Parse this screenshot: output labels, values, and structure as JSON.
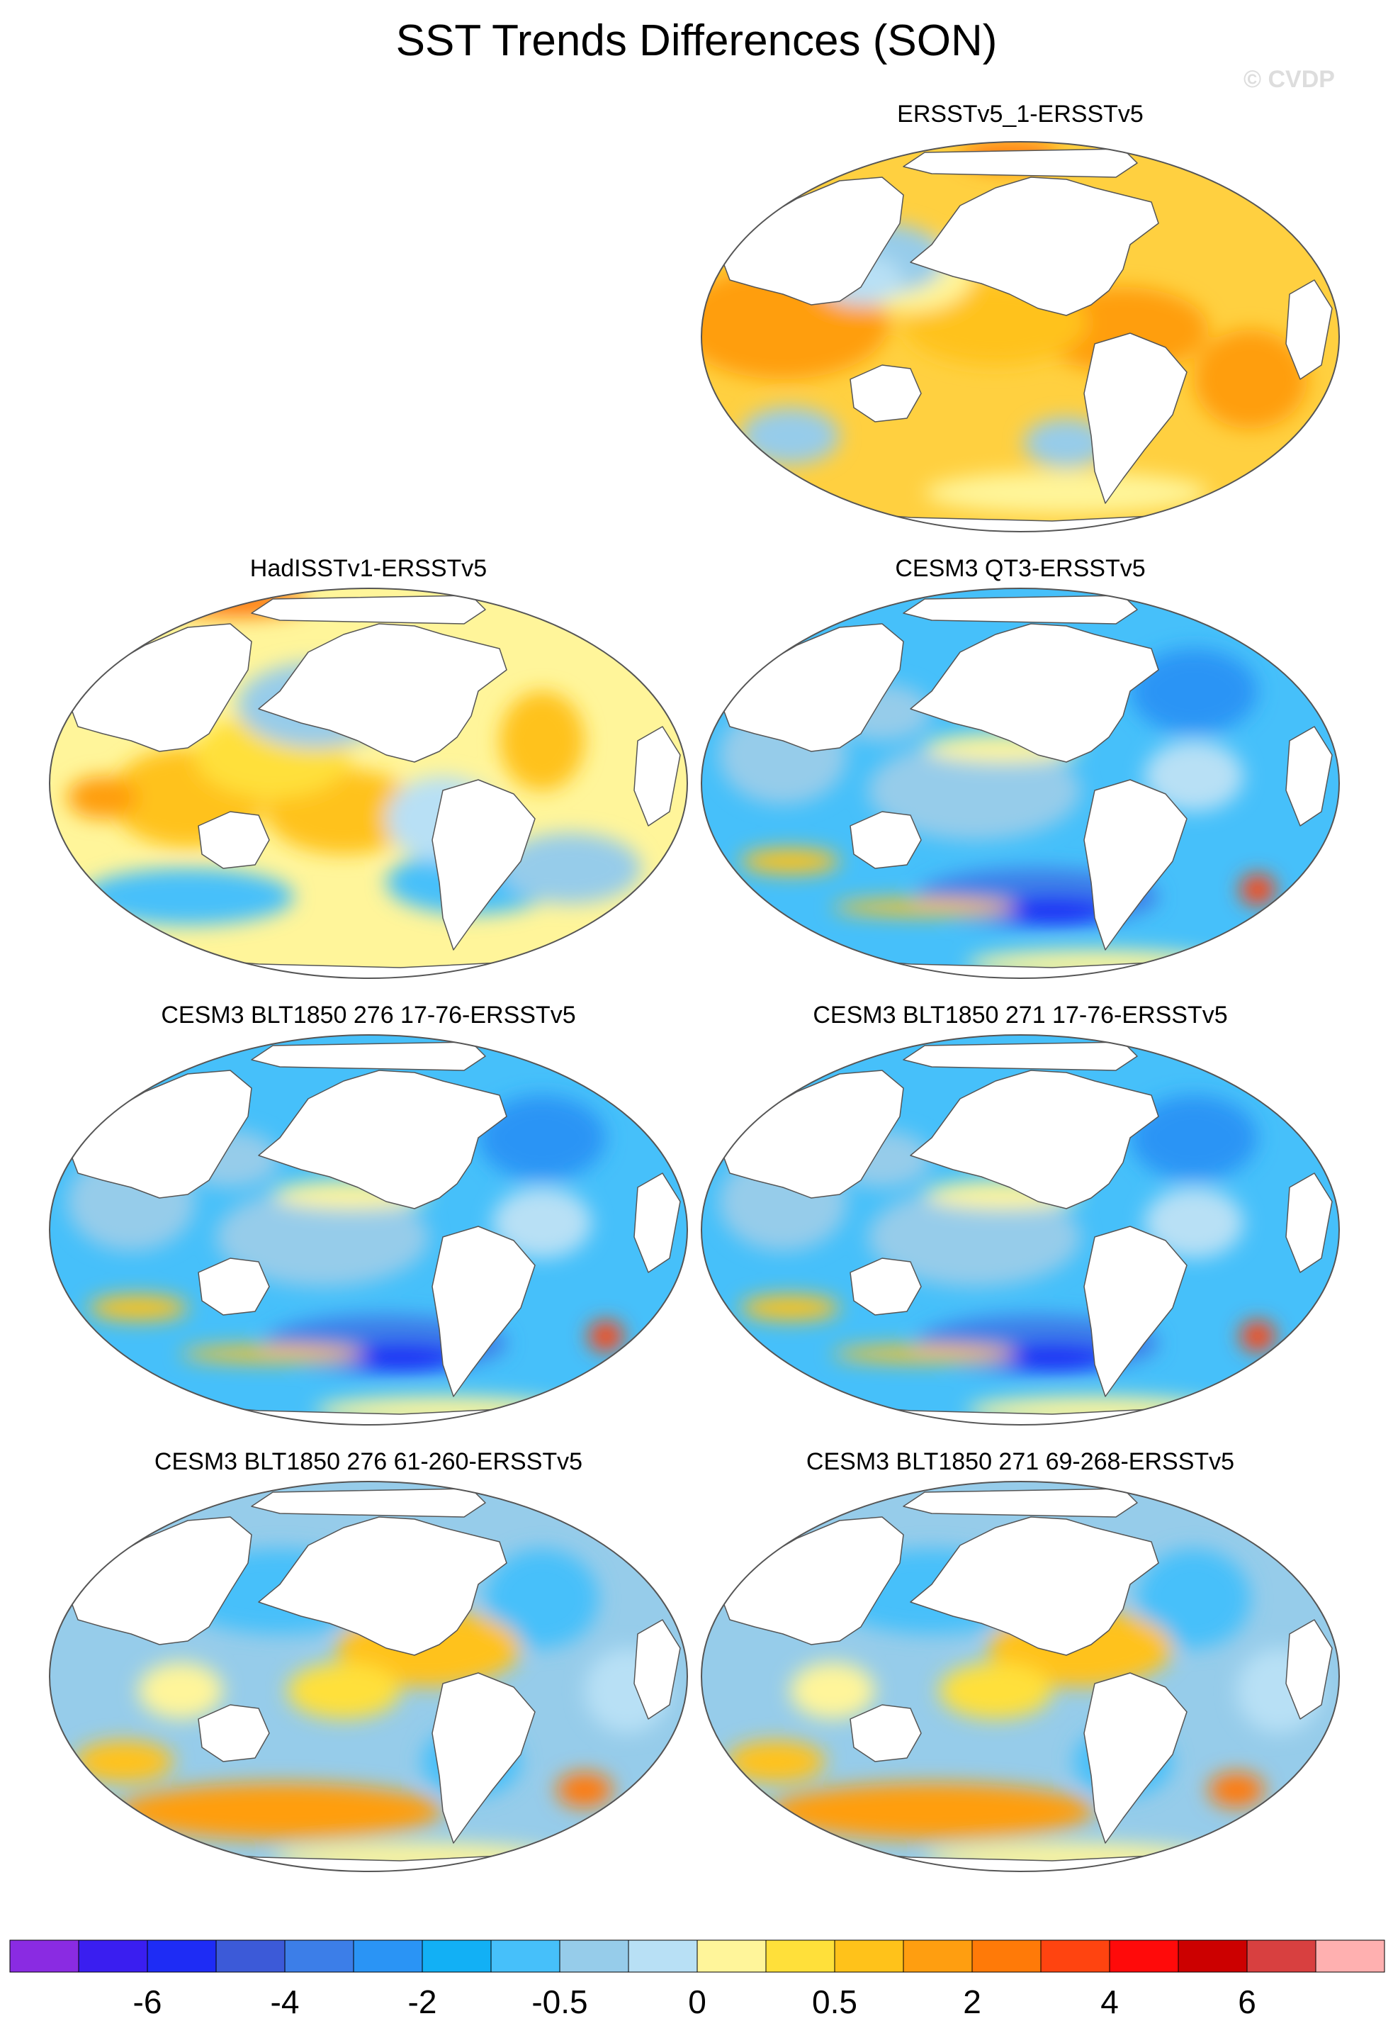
{
  "title": "SST Trends Differences (SON)",
  "copyright": "© CVDP",
  "panels": [
    {
      "label": "ERSSTv5_1-ERSSTv5",
      "pattern": "warm"
    },
    {
      "label": "HadISSTv1-ERSSTv5",
      "pattern": "mixed"
    },
    {
      "label": "CESM3 QT3-ERSSTv5",
      "pattern": "cool"
    },
    {
      "label": "CESM3 BLT1850 276 17-76-ERSSTv5",
      "pattern": "cool"
    },
    {
      "label": "CESM3 BLT1850 271 17-76-ERSSTv5",
      "pattern": "cool"
    },
    {
      "label": "CESM3 BLT1850 276 61-260-ERSSTv5",
      "pattern": "mixed-warm-south"
    },
    {
      "label": "CESM3 BLT1850 271 69-268-ERSSTv5",
      "pattern": "mixed-warm-south"
    }
  ],
  "colorbar": {
    "colors": [
      "#8a2be2",
      "#3a1ef0",
      "#1e2cf5",
      "#3c5ad8",
      "#3c7ee8",
      "#2a94f5",
      "#12b0f5",
      "#46c0fa",
      "#96ccea",
      "#b8e0f5",
      "#fff59a",
      "#ffe03a",
      "#ffc21a",
      "#ff9e10",
      "#ff7a08",
      "#ff4410",
      "#ff0a0a",
      "#cc0000",
      "#d84040",
      "#ffb0b0"
    ],
    "tick_labels": [
      "-6",
      "-4",
      "-2",
      "-0.5",
      "0",
      "0.5",
      "2",
      "4",
      "6"
    ]
  }
}
